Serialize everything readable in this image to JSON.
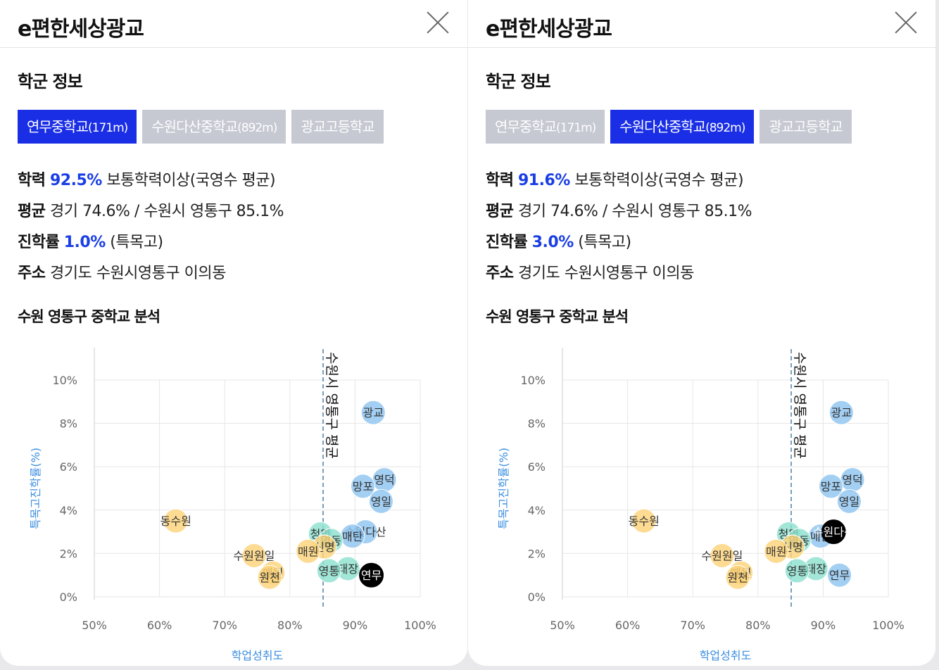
{
  "panels": [
    {
      "app_title": "e편한세상광교",
      "section_title": "학군 정보",
      "tabs": [
        {
          "name": "연무중학교",
          "distance": "(171m)",
          "active": true
        },
        {
          "name": "수원다산중학교",
          "distance": "(892m)",
          "active": false
        },
        {
          "name": "광교고등학교",
          "distance": "",
          "active": false
        }
      ],
      "info": {
        "achievement": {
          "label": "학력",
          "value": "92.5%",
          "text": "보통학력이상(국영수 평균)"
        },
        "average": {
          "label": "평균",
          "text": "경기 74.6% / 수원시 영통구 85.1%"
        },
        "advancement": {
          "label": "진학률",
          "value": "1.0%",
          "text": "(특목고)"
        },
        "address": {
          "label": "주소",
          "text": "경기도 수원시영통구 이의동"
        }
      },
      "chart_title": "수원 영통구 중학교 분석",
      "highlight": "연무"
    },
    {
      "app_title": "e편한세상광교",
      "section_title": "학군 정보",
      "tabs": [
        {
          "name": "연무중학교",
          "distance": "(171m)",
          "active": false
        },
        {
          "name": "수원다산중학교",
          "distance": "(892m)",
          "active": true
        },
        {
          "name": "광교고등학교",
          "distance": "",
          "active": false
        }
      ],
      "info": {
        "achievement": {
          "label": "학력",
          "value": "91.6%",
          "text": "보통학력이상(국영수 평균)"
        },
        "average": {
          "label": "평균",
          "text": "경기 74.6% / 수원시 영통구 85.1%"
        },
        "advancement": {
          "label": "진학률",
          "value": "3.0%",
          "text": "(특목고)"
        },
        "address": {
          "label": "주소",
          "text": "경기도 수원시영통구 이의동"
        }
      },
      "chart_title": "수원 영통구 중학교 분석",
      "highlight": "수원다산"
    }
  ],
  "chart_data": {
    "type": "scatter",
    "xlabel": "학업성취도",
    "ylabel": "특목고진학률(%)",
    "xlim": [
      50,
      100
    ],
    "ylim": [
      0,
      10
    ],
    "x_ticks": [
      "50%",
      "60%",
      "70%",
      "80%",
      "90%",
      "100%"
    ],
    "y_ticks": [
      "0%",
      "2%",
      "4%",
      "6%",
      "8%",
      "10%"
    ],
    "reference_line": {
      "x": 85.1,
      "label": "수원시 영통구 평균"
    },
    "colors": {
      "high": "#8fc4f0",
      "mid": "#8ee0cf",
      "low": "#fcd37a",
      "highlight": "#000000"
    },
    "points": [
      {
        "name": "광교",
        "x": 92.8,
        "y": 8.5,
        "group": "high"
      },
      {
        "name": "영덕",
        "x": 94.5,
        "y": 5.4,
        "group": "high"
      },
      {
        "name": "망포",
        "x": 91.2,
        "y": 5.1,
        "group": "high"
      },
      {
        "name": "영일",
        "x": 94.0,
        "y": 4.4,
        "group": "high"
      },
      {
        "name": "수원다산",
        "x": 91.6,
        "y": 3.0,
        "group": "high"
      },
      {
        "name": "매탄",
        "x": 89.6,
        "y": 2.8,
        "group": "high"
      },
      {
        "name": "연무",
        "x": 92.5,
        "y": 1.0,
        "group": "high"
      },
      {
        "name": "청명",
        "x": 84.7,
        "y": 2.9,
        "group": "mid"
      },
      {
        "name": "영동",
        "x": 86.3,
        "y": 2.6,
        "group": "mid"
      },
      {
        "name": "태장",
        "x": 88.9,
        "y": 1.3,
        "group": "mid"
      },
      {
        "name": "영통",
        "x": 86.0,
        "y": 1.2,
        "group": "mid"
      },
      {
        "name": "신명",
        "x": 85.3,
        "y": 2.3,
        "group": "low"
      },
      {
        "name": "매원",
        "x": 82.8,
        "y": 2.1,
        "group": "low"
      },
      {
        "name": "동수원",
        "x": 62.5,
        "y": 3.5,
        "group": "low"
      },
      {
        "name": "수원원일",
        "x": 74.5,
        "y": 1.9,
        "group": "low"
      },
      {
        "name": "매원",
        "x": 77.4,
        "y": 1.1,
        "group": "low"
      },
      {
        "name": "원천",
        "x": 76.9,
        "y": 0.9,
        "group": "low"
      }
    ]
  }
}
